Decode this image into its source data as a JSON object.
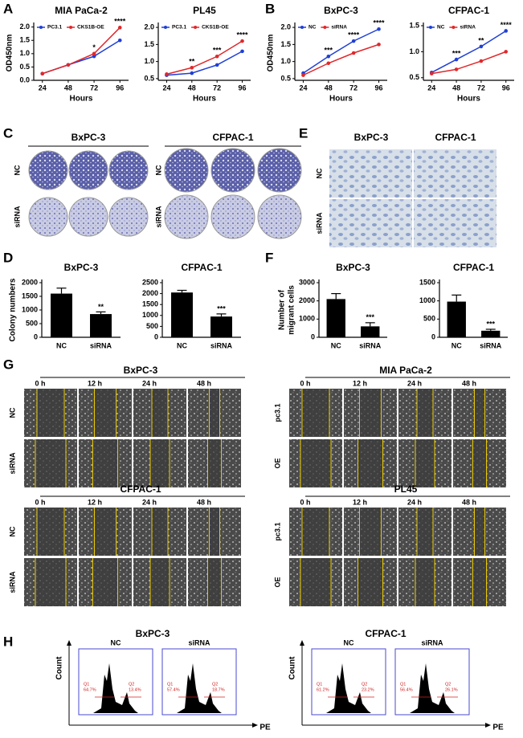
{
  "panel_letters": [
    "A",
    "B",
    "C",
    "D",
    "E",
    "F",
    "G",
    "H"
  ],
  "chart_data": [
    {
      "type": "line",
      "title": "MIA PaCa-2",
      "x_label": "Hours",
      "y_label": "OD450nm",
      "x": [
        24,
        48,
        72,
        96
      ],
      "xlim": [
        16,
        104
      ],
      "xticks": [
        24,
        48,
        72,
        96
      ],
      "ylim": [
        0,
        2.05
      ],
      "yticks": [
        {
          "value": 0,
          "label": "0.0"
        },
        0.5,
        {
          "value": 1,
          "label": "1.0"
        },
        1.5,
        {
          "value": 2,
          "label": "2.0"
        }
      ],
      "series": [
        {
          "name": "PC3.1",
          "color": "#1f3fd6",
          "values": [
            0.25,
            0.58,
            0.9,
            1.5
          ]
        },
        {
          "name": "CKS1B-OE",
          "color": "#e0282b",
          "values": [
            0.25,
            0.58,
            1.0,
            1.98
          ]
        }
      ],
      "annotations": [
        {
          "x": 72,
          "text": "*"
        },
        {
          "x": 96,
          "text": "****"
        }
      ]
    },
    {
      "type": "line",
      "title": "PL45",
      "x_label": "Hours",
      "x": [
        24,
        48,
        72,
        96
      ],
      "xlim": [
        16,
        104
      ],
      "xticks": [
        24,
        48,
        72,
        96
      ],
      "ylim": [
        0.45,
        2.05
      ],
      "yticks": [
        0.5,
        {
          "value": 1,
          "label": "1.0"
        },
        1.5,
        {
          "value": 2,
          "label": "2.0"
        }
      ],
      "series": [
        {
          "name": "PC3.1",
          "color": "#1f3fd6",
          "values": [
            0.6,
            0.66,
            0.9,
            1.3
          ]
        },
        {
          "name": "CKS1B-OE",
          "color": "#e0282b",
          "values": [
            0.63,
            0.82,
            1.15,
            1.6
          ]
        }
      ],
      "annotations": [
        {
          "x": 48,
          "text": "**"
        },
        {
          "x": 72,
          "text": "***"
        },
        {
          "x": 96,
          "text": "****"
        }
      ]
    },
    {
      "type": "line",
      "title": "BxPC-3",
      "x_label": "Hours",
      "y_label": "OD450nm",
      "x": [
        24,
        48,
        72,
        96
      ],
      "xlim": [
        16,
        104
      ],
      "xticks": [
        24,
        48,
        72,
        96
      ],
      "ylim": [
        0.45,
        2.05
      ],
      "yticks": [
        0.5,
        {
          "value": 1,
          "label": "1.0"
        },
        1.5,
        {
          "value": 2,
          "label": "2.0"
        }
      ],
      "series": [
        {
          "name": "NC",
          "color": "#1f3fd6",
          "values": [
            0.66,
            1.15,
            1.6,
            1.95
          ]
        },
        {
          "name": "siRNA",
          "color": "#e0282b",
          "values": [
            0.6,
            0.95,
            1.25,
            1.5
          ]
        }
      ],
      "annotations": [
        {
          "x": 48,
          "text": "***"
        },
        {
          "x": 72,
          "text": "****"
        },
        {
          "x": 96,
          "text": "****"
        }
      ]
    },
    {
      "type": "line",
      "title": "CFPAC-1",
      "x_label": "Hours",
      "x": [
        24,
        48,
        72,
        96
      ],
      "xlim": [
        16,
        104
      ],
      "xticks": [
        24,
        48,
        72,
        96
      ],
      "ylim": [
        0.45,
        1.5
      ],
      "yticks": [
        0.5,
        {
          "value": 1,
          "label": "1.0"
        },
        1.5
      ],
      "series": [
        {
          "name": "NC",
          "color": "#1f3fd6",
          "values": [
            0.6,
            0.85,
            1.1,
            1.4
          ]
        },
        {
          "name": "siRNA",
          "color": "#e0282b",
          "values": [
            0.58,
            0.66,
            0.82,
            1.0
          ]
        }
      ],
      "annotations": [
        {
          "x": 48,
          "text": "***"
        },
        {
          "x": 72,
          "text": "**"
        },
        {
          "x": 96,
          "text": "****"
        }
      ]
    },
    {
      "type": "bar",
      "title": "BxPC-3",
      "y_label": "Colony numbers",
      "categories": [
        "NC",
        "siRNA"
      ],
      "values": [
        1600,
        850
      ],
      "errors": [
        200,
        80
      ],
      "color": "#000000",
      "ylim": [
        0,
        2000
      ],
      "yticks": [
        0,
        500,
        1000,
        1500,
        2000
      ],
      "annotations": [
        {
          "x": "siRNA",
          "text": "**"
        }
      ]
    },
    {
      "type": "bar",
      "title": "CFPAC-1",
      "categories": [
        "NC",
        "siRNA"
      ],
      "values": [
        2050,
        950
      ],
      "errors": [
        100,
        120
      ],
      "color": "#000000",
      "ylim": [
        0,
        2500
      ],
      "yticks": [
        0,
        500,
        1000,
        1500,
        2000,
        2500
      ],
      "annotations": [
        {
          "x": "siRNA",
          "text": "***"
        }
      ]
    },
    {
      "type": "bar",
      "title": "BxPC-3",
      "y_label": [
        "Number of",
        "migrant cells"
      ],
      "categories": [
        "NC",
        "siRNA"
      ],
      "values": [
        2100,
        600
      ],
      "errors": [
        300,
        200
      ],
      "color": "#000000",
      "ylim": [
        0,
        3000
      ],
      "yticks": [
        0,
        1000,
        2000,
        3000
      ],
      "annotations": [
        {
          "x": "siRNA",
          "text": "***"
        }
      ]
    },
    {
      "type": "bar",
      "title": "CFPAC-1",
      "categories": [
        "NC",
        "siRNA"
      ],
      "values": [
        980,
        180
      ],
      "errors": [
        180,
        40
      ],
      "color": "#000000",
      "ylim": [
        0,
        1500
      ],
      "yticks": [
        0,
        500,
        1000,
        1500
      ],
      "annotations": [
        {
          "x": "siRNA",
          "text": "***"
        }
      ]
    }
  ],
  "colony": {
    "titles": [
      "BxPC-3",
      "CFPAC-1"
    ],
    "rows": [
      "NC",
      "siRNA"
    ]
  },
  "invasion": {
    "columns": [
      "BxPC-3",
      "CFPAC-1"
    ],
    "rows": [
      "NC",
      "siRNA"
    ]
  },
  "wound": {
    "times": [
      "0 h",
      "12 h",
      "24 h",
      "48 h"
    ],
    "blocks": [
      {
        "title": "BxPC-3",
        "rows": [
          "NC",
          "siRNA"
        ]
      },
      {
        "title": "MIA PaCa-2",
        "rows": [
          "pc3.1",
          "OE"
        ]
      },
      {
        "title": "CFPAC-1",
        "rows": [
          "NC",
          "siRNA"
        ]
      },
      {
        "title": "PL45",
        "rows": [
          "pc3.1",
          "OE"
        ]
      }
    ]
  },
  "flow": {
    "y_label": "Count",
    "x_label": "PE",
    "blocks": [
      {
        "title": "BxPC-3",
        "panels": [
          {
            "label": "NC",
            "gates": [
              {
                "name": "Q1",
                "value": "64.7%"
              },
              {
                "name": "Q2",
                "value": "13.4%"
              }
            ]
          },
          {
            "label": "siRNA",
            "gates": [
              {
                "name": "Q1",
                "value": "57.4%"
              },
              {
                "name": "Q2",
                "value": "18.7%"
              }
            ]
          }
        ]
      },
      {
        "title": "CFPAC-1",
        "panels": [
          {
            "label": "NC",
            "gates": [
              {
                "name": "Q1",
                "value": "61.2%"
              },
              {
                "name": "Q2",
                "value": "23.2%"
              }
            ]
          },
          {
            "label": "siRNA",
            "gates": [
              {
                "name": "Q1",
                "value": "56.4%"
              },
              {
                "name": "Q2",
                "value": "26.1%"
              }
            ]
          }
        ]
      }
    ]
  }
}
